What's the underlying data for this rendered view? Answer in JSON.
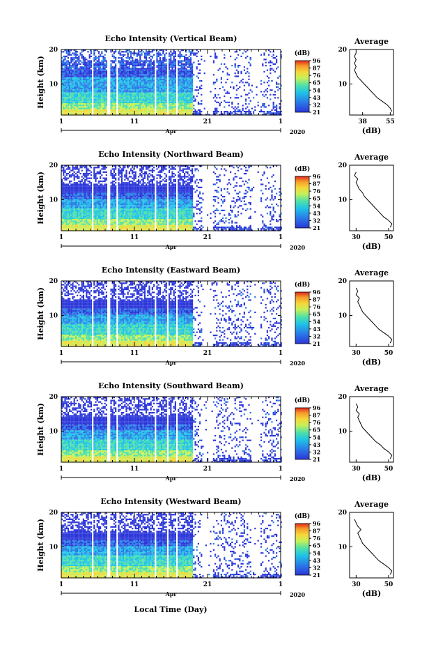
{
  "figure": {
    "month_label": "Apr",
    "year_label": "2020",
    "bottom_xlabel": "Local Time (Day)",
    "avg_title": "Average",
    "colorbar_label": "(dB)",
    "colorbar_ticks": [
      "96",
      "87",
      "76",
      "65",
      "54",
      "43",
      "32",
      "21"
    ],
    "colors": [
      "#2b36d9",
      "#2a7de8",
      "#1fc3e6",
      "#4fe0a8",
      "#c6f05a",
      "#f5d83a",
      "#f59a2a",
      "#e2271b"
    ]
  },
  "chart_data": [
    {
      "type": "heatmap",
      "title": "Echo Intensity (Vertical Beam)",
      "ylabel": "Height (km)",
      "ylim": [
        1,
        20
      ],
      "yticks": [
        "10",
        "20"
      ],
      "xlim": [
        1,
        31
      ],
      "xticks": [
        "1",
        "11",
        "21",
        "1"
      ],
      "cbar_range": [
        21,
        96
      ],
      "average_profile": {
        "xlabel": "(dB)",
        "xticks": [
          "38",
          "55"
        ],
        "xlim": [
          30,
          57
        ],
        "ylim": [
          1,
          20
        ],
        "yticks": [
          "10",
          "20"
        ],
        "points": [
          [
            56,
            2
          ],
          [
            55,
            3
          ],
          [
            53,
            4
          ],
          [
            50,
            5
          ],
          [
            47,
            6
          ],
          [
            45,
            7
          ],
          [
            43,
            8
          ],
          [
            41,
            9
          ],
          [
            39,
            10
          ],
          [
            37,
            11
          ],
          [
            35,
            12
          ],
          [
            34,
            13
          ],
          [
            33,
            14
          ],
          [
            34,
            15
          ],
          [
            33,
            16
          ],
          [
            34,
            17
          ],
          [
            33,
            18
          ],
          [
            34,
            19
          ],
          [
            34,
            20
          ]
        ]
      }
    },
    {
      "type": "heatmap",
      "title": "Echo Intensity (Northward Beam)",
      "ylabel": "Height (km)",
      "ylim": [
        1,
        20
      ],
      "yticks": [
        "10",
        "20"
      ],
      "xlim": [
        1,
        31
      ],
      "xticks": [
        "1",
        "11",
        "21",
        "1"
      ],
      "cbar_range": [
        21,
        96
      ],
      "average_profile": {
        "xlabel": "(dB)",
        "xticks": [
          "30",
          "50"
        ],
        "xlim": [
          26,
          53
        ],
        "ylim": [
          1,
          20
        ],
        "yticks": [
          "10",
          "20"
        ],
        "points": [
          [
            51,
            2
          ],
          [
            52,
            3
          ],
          [
            50,
            4
          ],
          [
            47,
            5
          ],
          [
            45,
            6
          ],
          [
            43,
            7
          ],
          [
            41,
            8
          ],
          [
            39,
            9
          ],
          [
            37,
            10
          ],
          [
            35,
            11
          ],
          [
            34,
            12
          ],
          [
            32,
            13
          ],
          [
            31,
            14
          ],
          [
            30,
            15
          ],
          [
            31,
            16
          ],
          [
            29,
            17
          ],
          [
            30,
            18
          ]
        ]
      }
    },
    {
      "type": "heatmap",
      "title": "Echo Intensity (Eastward Beam)",
      "ylabel": "Height (km)",
      "ylim": [
        1,
        20
      ],
      "yticks": [
        "10",
        "20"
      ],
      "xlim": [
        1,
        31
      ],
      "xticks": [
        "1",
        "11",
        "21",
        "1"
      ],
      "cbar_range": [
        21,
        96
      ],
      "average_profile": {
        "xlabel": "(dB)",
        "xticks": [
          "30",
          "50"
        ],
        "xlim": [
          26,
          53
        ],
        "ylim": [
          1,
          20
        ],
        "yticks": [
          "10",
          "20"
        ],
        "points": [
          [
            51,
            2
          ],
          [
            52,
            3
          ],
          [
            50,
            4
          ],
          [
            47,
            5
          ],
          [
            44,
            6
          ],
          [
            42,
            7
          ],
          [
            40,
            8
          ],
          [
            38,
            9
          ],
          [
            36,
            10
          ],
          [
            34,
            11
          ],
          [
            33,
            12
          ],
          [
            32,
            13
          ],
          [
            31,
            14
          ],
          [
            32,
            15
          ],
          [
            30,
            16
          ],
          [
            31,
            17
          ],
          [
            30,
            18
          ]
        ]
      }
    },
    {
      "type": "heatmap",
      "title": "Echo Intensity (Southward Beam)",
      "ylabel": "Height (km)",
      "ylim": [
        1,
        20
      ],
      "yticks": [
        "10",
        "20"
      ],
      "xlim": [
        1,
        31
      ],
      "xticks": [
        "1",
        "11",
        "21",
        "1"
      ],
      "cbar_range": [
        21,
        96
      ],
      "average_profile": {
        "xlabel": "(dB)",
        "xticks": [
          "30",
          "50"
        ],
        "xlim": [
          26,
          53
        ],
        "ylim": [
          1,
          20
        ],
        "yticks": [
          "10",
          "20"
        ],
        "points": [
          [
            51,
            2
          ],
          [
            52,
            3
          ],
          [
            50,
            4
          ],
          [
            47,
            5
          ],
          [
            45,
            6
          ],
          [
            42,
            7
          ],
          [
            40,
            8
          ],
          [
            38,
            9
          ],
          [
            36,
            10
          ],
          [
            34,
            11
          ],
          [
            33,
            12
          ],
          [
            32,
            13
          ],
          [
            31,
            14
          ],
          [
            32,
            15
          ],
          [
            30,
            16
          ],
          [
            31,
            17
          ],
          [
            30,
            18
          ]
        ]
      }
    },
    {
      "type": "heatmap",
      "title": "Echo Intensity (Westward Beam)",
      "ylabel": "Height (km)",
      "ylim": [
        1,
        20
      ],
      "yticks": [
        "10",
        "20"
      ],
      "xlim": [
        1,
        31
      ],
      "xticks": [
        "1",
        "11",
        "21",
        "1"
      ],
      "cbar_range": [
        21,
        96
      ],
      "average_profile": {
        "xlabel": "(dB)",
        "xticks": [
          "30",
          "50"
        ],
        "xlim": [
          26,
          53
        ],
        "ylim": [
          1,
          20
        ],
        "yticks": [
          "10",
          "20"
        ],
        "points": [
          [
            51,
            2
          ],
          [
            52,
            3
          ],
          [
            50,
            4
          ],
          [
            47,
            5
          ],
          [
            44,
            6
          ],
          [
            42,
            7
          ],
          [
            40,
            8
          ],
          [
            38,
            9
          ],
          [
            36,
            10
          ],
          [
            34,
            11
          ],
          [
            33,
            12
          ],
          [
            32,
            13
          ],
          [
            31,
            14
          ],
          [
            33,
            15
          ],
          [
            31,
            16
          ],
          [
            30,
            17
          ],
          [
            29,
            18
          ]
        ]
      }
    }
  ]
}
